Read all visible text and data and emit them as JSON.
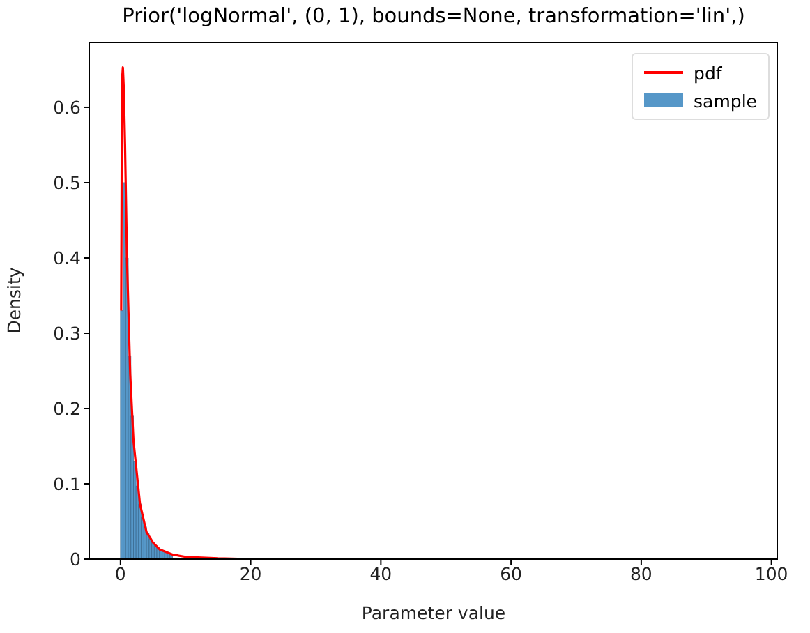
{
  "chart_data": {
    "type": "histogram",
    "title": "Prior('logNormal', (0, 1), bounds=None, transformation='lin',)",
    "xlabel": "Parameter value",
    "ylabel": "Density",
    "xlim": [
      -4.8,
      101
    ],
    "xticks": [
      0,
      20,
      40,
      60,
      80,
      100
    ],
    "ylim": [
      0,
      0.687
    ],
    "yticks": [
      0,
      0.1,
      0.2,
      0.3,
      0.4,
      0.5,
      0.6
    ],
    "legend": "top right",
    "series": [
      {
        "name": "pdf",
        "type": "line",
        "color": "#ff0000",
        "x": [
          0.11,
          0.2,
          0.3,
          0.37,
          0.5,
          0.7,
          1,
          1.5,
          2,
          3,
          4,
          5,
          6,
          8,
          10,
          15,
          20,
          40,
          96
        ],
        "values": [
          0.33,
          0.546,
          0.644,
          0.653,
          0.627,
          0.551,
          0.399,
          0.245,
          0.157,
          0.073,
          0.036,
          0.022,
          0.013,
          0.006,
          0.003,
          0.001,
          0,
          0,
          0
        ]
      },
      {
        "name": "sample",
        "color": "#5697c8",
        "bins": [
          0,
          0.4,
          0.8,
          1.2,
          1.6,
          2,
          2.4,
          2.8,
          3.2,
          3.6,
          4,
          4.4,
          4.8,
          5.2,
          5.6,
          6,
          6.4,
          6.8,
          7.2,
          7.6,
          8
        ],
        "values": [
          0.33,
          0.5,
          0.4,
          0.27,
          0.19,
          0.13,
          0.097,
          0.073,
          0.056,
          0.043,
          0.034,
          0.027,
          0.022,
          0.018,
          0.015,
          0.012,
          0.01,
          0.009,
          0.007,
          0.006
        ]
      }
    ]
  }
}
